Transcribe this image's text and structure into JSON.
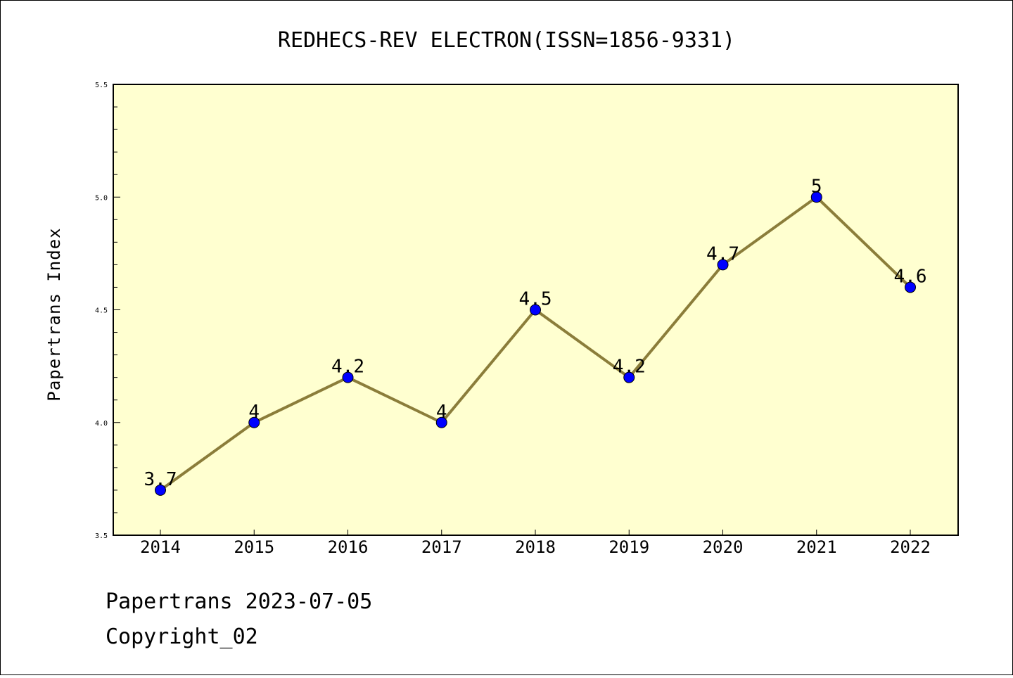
{
  "chart_data": {
    "type": "line",
    "title": "REDHECS-REV ELECTRON(ISSN=1856-9331)",
    "ylabel": "Papertrans Index",
    "xlabel": "",
    "categories": [
      "2014",
      "2015",
      "2016",
      "2017",
      "2018",
      "2019",
      "2020",
      "2021",
      "2022"
    ],
    "values": [
      3.7,
      4,
      4.2,
      4,
      4.5,
      4.2,
      4.7,
      5,
      4.6
    ],
    "data_labels": [
      "3.7",
      "4",
      "4.2",
      "4",
      "4.5",
      "4.2",
      "4.7",
      "5",
      "4.6"
    ],
    "ylim": [
      3.5,
      5.5
    ],
    "yticks": [
      "3.5",
      "4.0",
      "4.5",
      "5.0",
      "5.5"
    ],
    "grid": false,
    "colors": {
      "plot_background": "#ffffd0",
      "line": "#8b7d3a",
      "marker": "#0000ff"
    }
  },
  "footer": {
    "date_line": "Papertrans 2023-07-05",
    "copyright": "Copyright_02"
  }
}
